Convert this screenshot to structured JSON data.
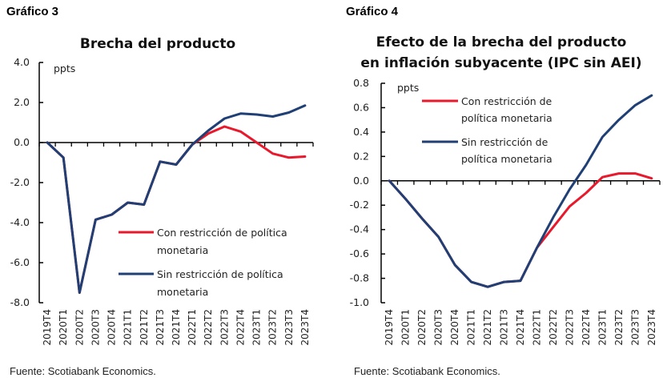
{
  "figures": [
    {
      "label": "Gráfico 3",
      "source": "Fuente: Scotiabank Economics."
    },
    {
      "label": "Gráfico 4",
      "source": "Fuente: Scotiabank Economics."
    }
  ],
  "colors": {
    "con": "#e8192c",
    "sin": "#1f3f75",
    "axis": "#000000"
  },
  "chart_data": [
    {
      "type": "line",
      "title": [
        "Brecha del producto"
      ],
      "ylabel": "ppts",
      "xlabel": "",
      "ylim": [
        -8.0,
        4.0
      ],
      "yticks": [
        4.0,
        2.0,
        0.0,
        -2.0,
        -4.0,
        -6.0,
        -8.0
      ],
      "ytick_labels": [
        "4.0",
        "2.0",
        "0.0",
        "-2.0",
        "-4.0",
        "-6.0",
        "-8.0"
      ],
      "grid": false,
      "legend_position": "lower-right",
      "categories": [
        "2019T4",
        "2020T1",
        "2020T2",
        "2020T3",
        "2020T4",
        "2021T1",
        "2021T2",
        "2021T3",
        "2021T4",
        "2022T1",
        "2022T2",
        "2022T3",
        "2022T4",
        "2023T1",
        "2023T2",
        "2023T3",
        "2023T4"
      ],
      "series": [
        {
          "name": "Con restricción de política monetaria",
          "legend_lines": [
            "Con restricción de política",
            "monetaria"
          ],
          "color": "#e8192c",
          "values": [
            0.0,
            -0.75,
            -7.5,
            -3.85,
            -3.6,
            -3.0,
            -3.1,
            -0.95,
            -1.1,
            -0.1,
            0.45,
            0.8,
            0.55,
            0.0,
            -0.55,
            -0.75,
            -0.7
          ]
        },
        {
          "name": "Sin restricción de política monetaria",
          "legend_lines": [
            "Sin restricción de política",
            "monetaria"
          ],
          "color": "#1f3f75",
          "values": [
            0.0,
            -0.75,
            -7.5,
            -3.85,
            -3.6,
            -3.0,
            -3.1,
            -0.95,
            -1.1,
            -0.1,
            0.6,
            1.2,
            1.45,
            1.4,
            1.3,
            1.5,
            1.85
          ]
        }
      ]
    },
    {
      "type": "line",
      "title": [
        "Efecto de la brecha del producto",
        "en inflación subyacente (IPC sin AEI)"
      ],
      "ylabel": "ppts",
      "xlabel": "",
      "ylim": [
        -1.0,
        0.8
      ],
      "yticks": [
        0.8,
        0.6,
        0.4,
        0.2,
        0.0,
        -0.2,
        -0.4,
        -0.6,
        -0.8,
        -1.0
      ],
      "ytick_labels": [
        "0.8",
        "0.6",
        "0.4",
        "0.2",
        "0.0",
        "-0.2",
        "-0.4",
        "-0.6",
        "-0.8",
        "-1.0"
      ],
      "grid": false,
      "legend_position": "top-left",
      "categories": [
        "2019T4",
        "2020T1",
        "2020T2",
        "2020T3",
        "2020T4",
        "2021T1",
        "2021T2",
        "2021T3",
        "2021T4",
        "2022T1",
        "2022T2",
        "2022T3",
        "2022T4",
        "2023T1",
        "2023T2",
        "2023T3",
        "2023T4"
      ],
      "series": [
        {
          "name": "Con restricción de política monetaria",
          "legend_lines": [
            "Con restricción de",
            "política monetaria"
          ],
          "color": "#e8192c",
          "values": [
            0.0,
            -0.15,
            -0.31,
            -0.46,
            -0.69,
            -0.83,
            -0.87,
            -0.83,
            -0.82,
            -0.55,
            -0.38,
            -0.21,
            -0.1,
            0.03,
            0.06,
            0.06,
            0.02
          ]
        },
        {
          "name": "Sin restricción de política monetaria",
          "legend_lines": [
            "Sin restricción de",
            "política monetaria"
          ],
          "color": "#1f3f75",
          "values": [
            0.0,
            -0.15,
            -0.31,
            -0.46,
            -0.69,
            -0.83,
            -0.87,
            -0.83,
            -0.82,
            -0.55,
            -0.3,
            -0.07,
            0.13,
            0.36,
            0.5,
            0.62,
            0.7
          ]
        }
      ]
    }
  ]
}
